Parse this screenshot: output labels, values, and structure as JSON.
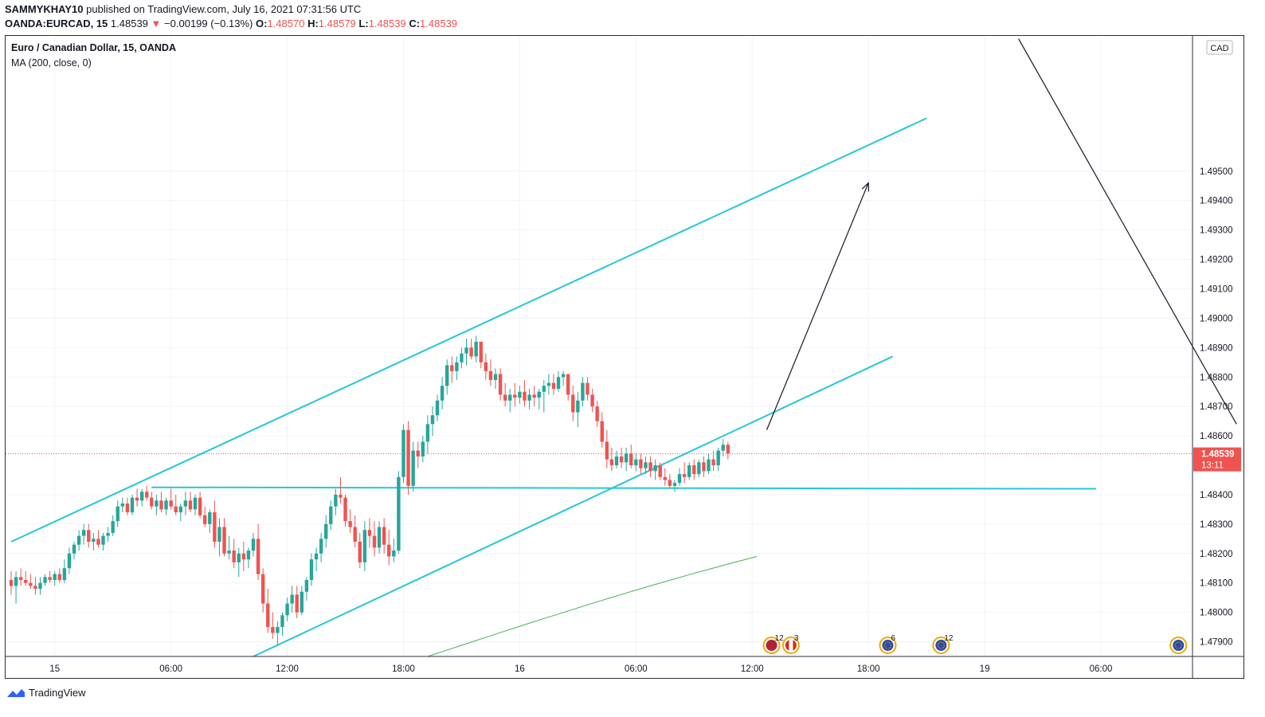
{
  "header": {
    "author": "SAMMYKHAY10",
    "published": "published on TradingView.com, July 16, 2021 07:31:56 UTC",
    "symbol": "OANDA:EURCAD, 15",
    "last": "1.48539",
    "change_arrow": "▼",
    "change": "−0.00199 (−0.13%)",
    "o_label": "O:",
    "o_value": "1.48570",
    "h_label": "H:",
    "h_value": "1.48579",
    "l_label": "L:",
    "l_value": "1.48539",
    "c_label": "C:",
    "c_value": "1.48539"
  },
  "legend": {
    "title": "Euro / Canadian Dollar, 15, OANDA",
    "indicator": "MA (200, close, 0)"
  },
  "footer": {
    "brand": "TradingView",
    "logo_icon": "tradingview-logo-icon"
  },
  "colors": {
    "up": "#26a69a",
    "down": "#ef5350",
    "channel": "#26c6da",
    "ma": "#4caf50",
    "arrow": "#131722",
    "price_tag": "#ef5350"
  },
  "chart_data": {
    "type": "candlestick",
    "currency": "CAD",
    "price_tag": {
      "value": "1.48539",
      "countdown": "13:11"
    },
    "ylim": [
      1.4785,
      1.4996
    ],
    "y_ticks": [
      "1.47900",
      "1.48000",
      "1.48100",
      "1.48200",
      "1.48300",
      "1.48400",
      "1.48600",
      "1.48700",
      "1.48800",
      "1.48900",
      "1.49000",
      "1.49100",
      "1.49200",
      "1.49300",
      "1.49400",
      "1.49500"
    ],
    "x_ticks": [
      "15",
      "06:00",
      "12:00",
      "18:00",
      "16",
      "06:00",
      "12:00",
      "18:00",
      "19",
      "06:00"
    ],
    "x_tick_index": [
      9,
      33,
      57,
      81,
      105,
      129,
      153,
      177,
      201,
      225
    ],
    "events": [
      {
        "index": 157,
        "label": "12",
        "icon": "us-flag-event-icon"
      },
      {
        "index": 161,
        "label": "3",
        "icon": "canada-flag-event-icon"
      },
      {
        "index": 181,
        "label": "6",
        "icon": "eu-flag-event-icon"
      },
      {
        "index": 192,
        "label": "12",
        "icon": "eu-flag-event-icon"
      },
      {
        "index": 241,
        "label": "",
        "icon": "eu-flag-event-icon"
      }
    ],
    "candles": [
      [
        1.4811,
        1.4814,
        1.4806,
        1.4809
      ],
      [
        1.4809,
        1.4814,
        1.4803,
        1.4812
      ],
      [
        1.4812,
        1.4815,
        1.4809,
        1.4811
      ],
      [
        1.4811,
        1.4814,
        1.4809,
        1.481
      ],
      [
        1.481,
        1.4813,
        1.4808,
        1.4809
      ],
      [
        1.4809,
        1.4812,
        1.4806,
        1.4808
      ],
      [
        1.4808,
        1.4812,
        1.4806,
        1.481
      ],
      [
        1.481,
        1.4813,
        1.4809,
        1.4812
      ],
      [
        1.4812,
        1.4814,
        1.481,
        1.4811
      ],
      [
        1.4811,
        1.4814,
        1.4809,
        1.4813
      ],
      [
        1.4813,
        1.4815,
        1.481,
        1.4811
      ],
      [
        1.4811,
        1.4818,
        1.481,
        1.4815
      ],
      [
        1.4815,
        1.4822,
        1.4813,
        1.482
      ],
      [
        1.482,
        1.4824,
        1.4818,
        1.4823
      ],
      [
        1.4823,
        1.4828,
        1.4821,
        1.4826
      ],
      [
        1.4826,
        1.483,
        1.4823,
        1.4828
      ],
      [
        1.4828,
        1.483,
        1.4822,
        1.4824
      ],
      [
        1.4824,
        1.4827,
        1.4821,
        1.4825
      ],
      [
        1.4825,
        1.4828,
        1.4822,
        1.4823
      ],
      [
        1.4823,
        1.4827,
        1.4821,
        1.4826
      ],
      [
        1.4826,
        1.4829,
        1.4824,
        1.4827
      ],
      [
        1.4827,
        1.4833,
        1.4826,
        1.4831
      ],
      [
        1.4831,
        1.4838,
        1.4829,
        1.4836
      ],
      [
        1.4836,
        1.4839,
        1.4834,
        1.4837
      ],
      [
        1.4837,
        1.4839,
        1.4833,
        1.4834
      ],
      [
        1.4834,
        1.484,
        1.4833,
        1.4839
      ],
      [
        1.4839,
        1.4842,
        1.4836,
        1.4838
      ],
      [
        1.4838,
        1.4842,
        1.4836,
        1.4841
      ],
      [
        1.4841,
        1.4843,
        1.4838,
        1.4839
      ],
      [
        1.4839,
        1.4841,
        1.4835,
        1.4836
      ],
      [
        1.4836,
        1.484,
        1.4833,
        1.4838
      ],
      [
        1.4838,
        1.4841,
        1.4834,
        1.4835
      ],
      [
        1.4835,
        1.4839,
        1.4833,
        1.4838
      ],
      [
        1.4838,
        1.4842,
        1.4835,
        1.4836
      ],
      [
        1.4836,
        1.484,
        1.4833,
        1.4834
      ],
      [
        1.4834,
        1.4837,
        1.4831,
        1.4836
      ],
      [
        1.4836,
        1.4841,
        1.4833,
        1.4838
      ],
      [
        1.4838,
        1.4841,
        1.4834,
        1.4835
      ],
      [
        1.4835,
        1.484,
        1.4833,
        1.4839
      ],
      [
        1.4839,
        1.4841,
        1.4832,
        1.4833
      ],
      [
        1.4833,
        1.4836,
        1.4829,
        1.483
      ],
      [
        1.483,
        1.4835,
        1.4827,
        1.4834
      ],
      [
        1.4834,
        1.4838,
        1.4822,
        1.4824
      ],
      [
        1.4824,
        1.4832,
        1.4819,
        1.4829
      ],
      [
        1.4829,
        1.4832,
        1.4819,
        1.482
      ],
      [
        1.482,
        1.4826,
        1.4818,
        1.4821
      ],
      [
        1.4821,
        1.4825,
        1.4815,
        1.4817
      ],
      [
        1.4817,
        1.4822,
        1.4812,
        1.482
      ],
      [
        1.482,
        1.4824,
        1.4814,
        1.4818
      ],
      [
        1.4818,
        1.4822,
        1.4815,
        1.4821
      ],
      [
        1.4821,
        1.4827,
        1.4819,
        1.4825
      ],
      [
        1.4825,
        1.483,
        1.4811,
        1.4813
      ],
      [
        1.4813,
        1.4815,
        1.48,
        1.4803
      ],
      [
        1.4803,
        1.4808,
        1.4793,
        1.4795
      ],
      [
        1.4795,
        1.48,
        1.4791,
        1.4793
      ],
      [
        1.4793,
        1.4797,
        1.4789,
        1.4795
      ],
      [
        1.4795,
        1.48,
        1.4792,
        1.4799
      ],
      [
        1.4799,
        1.4805,
        1.4797,
        1.4803
      ],
      [
        1.4803,
        1.4809,
        1.48,
        1.4806
      ],
      [
        1.4806,
        1.4809,
        1.4798,
        1.48
      ],
      [
        1.48,
        1.4809,
        1.4799,
        1.4807
      ],
      [
        1.4807,
        1.4812,
        1.4804,
        1.4811
      ],
      [
        1.4811,
        1.482,
        1.4809,
        1.4818
      ],
      [
        1.4818,
        1.4822,
        1.4814,
        1.482
      ],
      [
        1.482,
        1.4827,
        1.4817,
        1.4825
      ],
      [
        1.4825,
        1.4833,
        1.4822,
        1.483
      ],
      [
        1.483,
        1.4838,
        1.4828,
        1.4836
      ],
      [
        1.4836,
        1.4842,
        1.4833,
        1.484
      ],
      [
        1.484,
        1.4846,
        1.4837,
        1.4839
      ],
      [
        1.4839,
        1.484,
        1.4829,
        1.4831
      ],
      [
        1.4831,
        1.4835,
        1.4827,
        1.4829
      ],
      [
        1.4829,
        1.4833,
        1.4822,
        1.4824
      ],
      [
        1.4824,
        1.4827,
        1.4815,
        1.4817
      ],
      [
        1.4817,
        1.4831,
        1.4814,
        1.4828
      ],
      [
        1.4828,
        1.4832,
        1.4822,
        1.4826
      ],
      [
        1.4826,
        1.4831,
        1.4819,
        1.4822
      ],
      [
        1.4822,
        1.4831,
        1.482,
        1.4829
      ],
      [
        1.4829,
        1.4832,
        1.482,
        1.4823
      ],
      [
        1.4823,
        1.4828,
        1.4816,
        1.4819
      ],
      [
        1.4819,
        1.4825,
        1.4817,
        1.4821
      ],
      [
        1.4821,
        1.4848,
        1.482,
        1.4846
      ],
      [
        1.4846,
        1.4864,
        1.4844,
        1.4862
      ],
      [
        1.4862,
        1.4865,
        1.484,
        1.4843
      ],
      [
        1.4843,
        1.4858,
        1.4841,
        1.4855
      ],
      [
        1.4855,
        1.4858,
        1.4849,
        1.4853
      ],
      [
        1.4853,
        1.486,
        1.4851,
        1.4858
      ],
      [
        1.4858,
        1.4867,
        1.4854,
        1.4864
      ],
      [
        1.4864,
        1.487,
        1.486,
        1.4867
      ],
      [
        1.4867,
        1.4874,
        1.4865,
        1.4872
      ],
      [
        1.4872,
        1.488,
        1.4869,
        1.4877
      ],
      [
        1.4877,
        1.4886,
        1.4874,
        1.4884
      ],
      [
        1.4884,
        1.4887,
        1.4878,
        1.4882
      ],
      [
        1.4882,
        1.4887,
        1.4879,
        1.4885
      ],
      [
        1.4885,
        1.489,
        1.4883,
        1.4888
      ],
      [
        1.4888,
        1.4893,
        1.4884,
        1.489
      ],
      [
        1.489,
        1.4893,
        1.4886,
        1.4887
      ],
      [
        1.4887,
        1.4894,
        1.4885,
        1.4892
      ],
      [
        1.4892,
        1.4892,
        1.4883,
        1.4885
      ],
      [
        1.4885,
        1.4888,
        1.4879,
        1.4882
      ],
      [
        1.4882,
        1.4886,
        1.4877,
        1.4879
      ],
      [
        1.4879,
        1.4883,
        1.4876,
        1.4881
      ],
      [
        1.4881,
        1.4883,
        1.4872,
        1.4874
      ],
      [
        1.4874,
        1.4878,
        1.487,
        1.4872
      ],
      [
        1.4872,
        1.4876,
        1.4868,
        1.4874
      ],
      [
        1.4874,
        1.4878,
        1.487,
        1.4873
      ],
      [
        1.4873,
        1.4877,
        1.4871,
        1.4875
      ],
      [
        1.4875,
        1.4879,
        1.487,
        1.4872
      ],
      [
        1.4872,
        1.4876,
        1.4869,
        1.4874
      ],
      [
        1.4874,
        1.4877,
        1.487,
        1.4873
      ],
      [
        1.4873,
        1.4876,
        1.4869,
        1.4875
      ],
      [
        1.4875,
        1.4879,
        1.4868,
        1.4877
      ],
      [
        1.4877,
        1.4881,
        1.4874,
        1.4878
      ],
      [
        1.4878,
        1.4881,
        1.4874,
        1.4876
      ],
      [
        1.4876,
        1.4882,
        1.4875,
        1.488
      ],
      [
        1.488,
        1.4882,
        1.4877,
        1.4881
      ],
      [
        1.4881,
        1.4881,
        1.4872,
        1.4874
      ],
      [
        1.4874,
        1.4877,
        1.4865,
        1.4868
      ],
      [
        1.4868,
        1.4875,
        1.4863,
        1.4872
      ],
      [
        1.4872,
        1.488,
        1.487,
        1.4878
      ],
      [
        1.4878,
        1.488,
        1.4872,
        1.4874
      ],
      [
        1.4874,
        1.4876,
        1.4868,
        1.487
      ],
      [
        1.487,
        1.4872,
        1.4863,
        1.4865
      ],
      [
        1.4865,
        1.4868,
        1.4856,
        1.4858
      ],
      [
        1.4858,
        1.4862,
        1.4849,
        1.4852
      ],
      [
        1.4852,
        1.4856,
        1.4848,
        1.485
      ],
      [
        1.485,
        1.4855,
        1.4849,
        1.4853
      ],
      [
        1.4853,
        1.4856,
        1.4849,
        1.4851
      ],
      [
        1.4851,
        1.4856,
        1.4848,
        1.4854
      ],
      [
        1.4854,
        1.4857,
        1.4849,
        1.485
      ],
      [
        1.485,
        1.4854,
        1.4848,
        1.4852
      ],
      [
        1.4852,
        1.4854,
        1.4847,
        1.4849
      ],
      [
        1.4849,
        1.4853,
        1.4847,
        1.4851
      ],
      [
        1.4851,
        1.4853,
        1.4846,
        1.4848
      ],
      [
        1.4848,
        1.4852,
        1.4845,
        1.485
      ],
      [
        1.485,
        1.4851,
        1.4845,
        1.4846
      ],
      [
        1.4846,
        1.4849,
        1.4843,
        1.4845
      ],
      [
        1.4845,
        1.4847,
        1.4842,
        1.4843
      ],
      [
        1.4843,
        1.4845,
        1.4841,
        1.4844
      ],
      [
        1.4844,
        1.4849,
        1.4843,
        1.4847
      ],
      [
        1.4847,
        1.4851,
        1.4844,
        1.4846
      ],
      [
        1.4846,
        1.4851,
        1.4845,
        1.485
      ],
      [
        1.485,
        1.4852,
        1.4845,
        1.4847
      ],
      [
        1.4847,
        1.4852,
        1.4846,
        1.4851
      ],
      [
        1.4851,
        1.4853,
        1.4846,
        1.4848
      ],
      [
        1.4848,
        1.4854,
        1.4847,
        1.4852
      ],
      [
        1.4852,
        1.4855,
        1.4848,
        1.485
      ],
      [
        1.485,
        1.4856,
        1.4848,
        1.4855
      ],
      [
        1.4855,
        1.4859,
        1.4853,
        1.4857
      ],
      [
        1.4857,
        1.4858,
        1.4852,
        1.4854
      ]
    ],
    "ma": {
      "name": "MA (200, close, 0)",
      "start_index": 86,
      "start_value": 1.4785,
      "end_index": 154,
      "end_value": 1.4819
    },
    "drawings": {
      "horizontal_level": {
        "value": 1.4842,
        "from_index": 29,
        "to_index": 224
      },
      "channel_upper": {
        "from": [
          0,
          1.4824
        ],
        "to": [
          189,
          1.4968
        ]
      },
      "channel_lower": {
        "from": [
          50,
          1.4785
        ],
        "to": [
          182,
          1.4887
        ]
      },
      "arrow_up": {
        "from": [
          156,
          1.4862
        ],
        "to": [
          177,
          1.4946
        ]
      },
      "line_down": {
        "from": [
          208,
          1.4995
        ],
        "to": [
          253,
          1.4864
        ]
      }
    }
  }
}
